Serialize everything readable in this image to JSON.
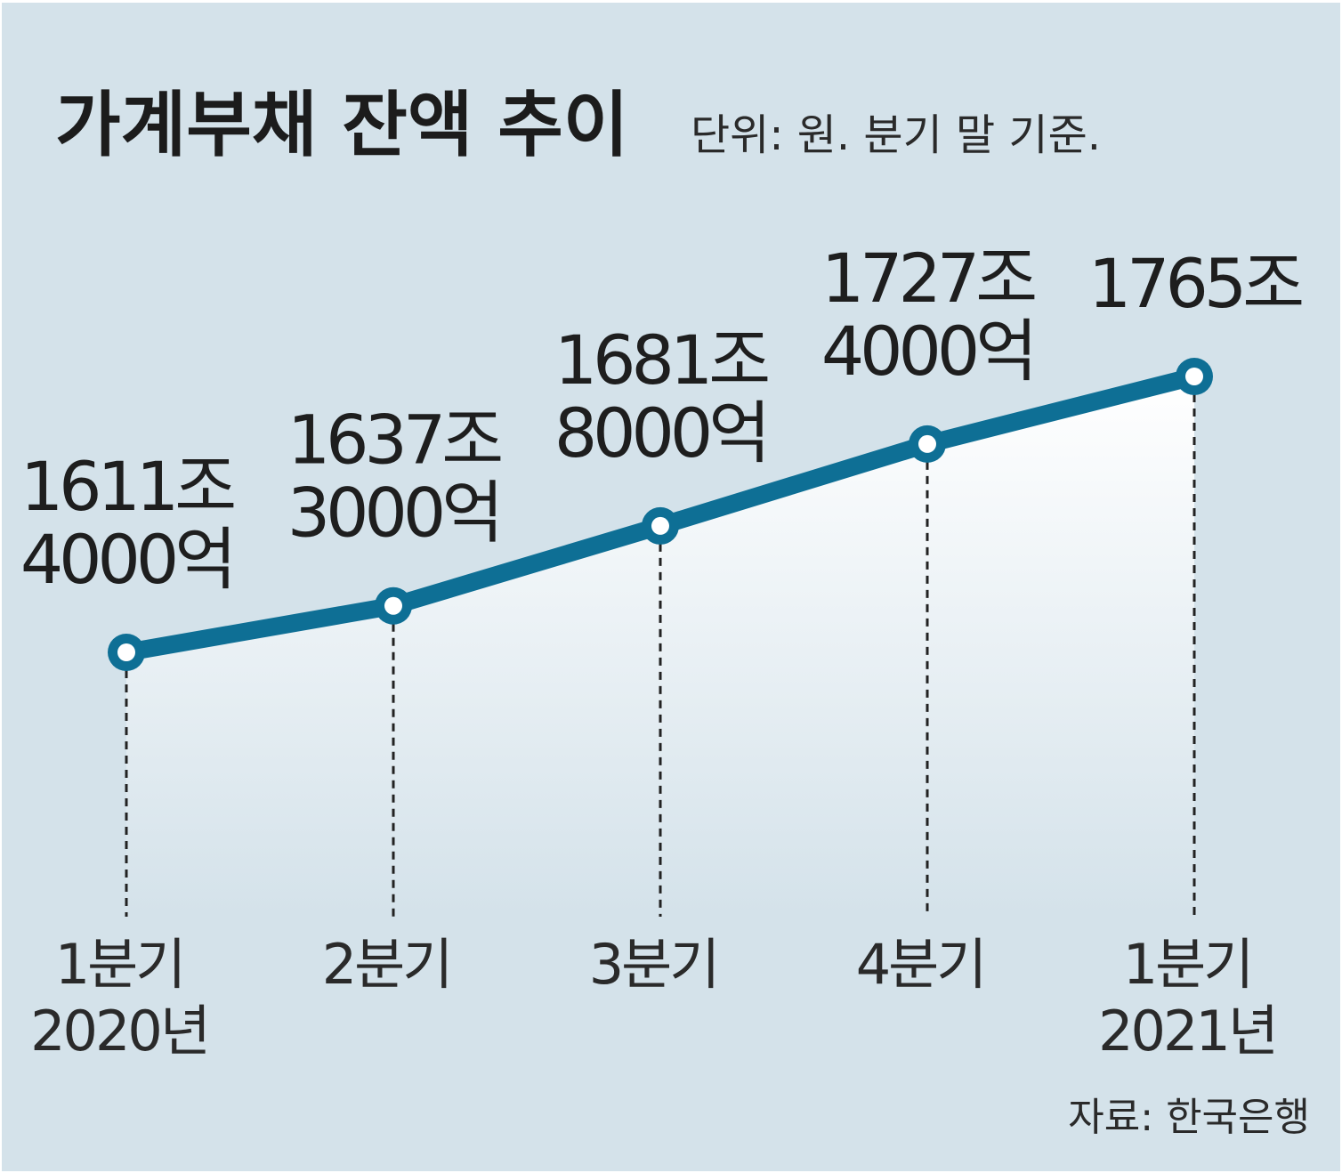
{
  "chart_data": {
    "type": "area",
    "title": "가계부채 잔액 추이",
    "subtitle": "단위: 원. 분기 말 기준.",
    "source": "자료: 한국은행",
    "xlabel": "",
    "ylabel": "",
    "grid": false,
    "categories": [
      [
        "1분기",
        "2020년"
      ],
      [
        "2분기"
      ],
      [
        "3분기"
      ],
      [
        "4분기"
      ],
      [
        "1분기",
        "2021년"
      ]
    ],
    "series": [
      {
        "values": [
          16114000,
          16373000,
          16818000,
          17274000,
          17650000
        ]
      }
    ],
    "data_labels": [
      [
        "1611조",
        "4000억"
      ],
      [
        "1637조",
        "3000억"
      ],
      [
        "1681조",
        "8000억"
      ],
      [
        "1727조",
        "4000억"
      ],
      [
        "1765조"
      ]
    ],
    "colors": {
      "background": "#d4e2ea",
      "line": "#0e6f95",
      "marker_fill": "#ffffff",
      "area_top": "#ffffff",
      "area_bottom": "#d4e2ea"
    }
  }
}
